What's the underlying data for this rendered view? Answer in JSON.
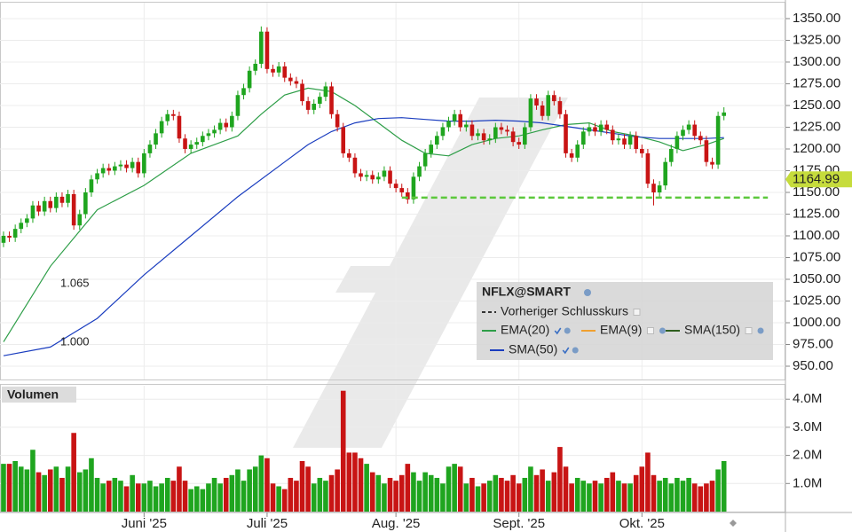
{
  "chart_data": {
    "type": "candlestick",
    "symbol": "NFLX@SMART",
    "xlim": [
      -0.6,
      133.5
    ],
    "xticks": [
      {
        "value": 24,
        "label": "Juni '25"
      },
      {
        "value": 45,
        "label": "Juli '25"
      },
      {
        "value": 67,
        "label": "Aug. '25"
      },
      {
        "value": 88,
        "label": "Sept. '25"
      },
      {
        "value": 109,
        "label": "Okt. '25"
      }
    ],
    "ylim": [
      934.7,
      1366.3
    ],
    "yticks": [
      {
        "value": 950,
        "label": "950.00"
      },
      {
        "value": 975,
        "label": "975.00"
      },
      {
        "value": 1000,
        "label": "1000.00"
      },
      {
        "value": 1025,
        "label": "1025.00"
      },
      {
        "value": 1050,
        "label": "1050.00"
      },
      {
        "value": 1075,
        "label": "1075.00"
      },
      {
        "value": 1100,
        "label": "1100.00"
      },
      {
        "value": 1125,
        "label": "1125.00"
      },
      {
        "value": 1150,
        "label": "1150.00"
      },
      {
        "value": 1175,
        "label": "1175.00"
      },
      {
        "value": 1200,
        "label": "1200.00"
      },
      {
        "value": 1225,
        "label": "1225.00"
      },
      {
        "value": 1250,
        "label": "1250.00"
      },
      {
        "value": 1275,
        "label": "1275.00"
      },
      {
        "value": 1300,
        "label": "1300.00"
      },
      {
        "value": 1325,
        "label": "1325.00"
      },
      {
        "value": 1350,
        "label": "1350.00"
      }
    ],
    "grid": true,
    "up_color": "#1fa51f",
    "down_color": "#c81414",
    "open": [
      1092,
      1100,
      1098,
      1108,
      1115,
      1120,
      1135,
      1128,
      1140,
      1132,
      1145,
      1138,
      1148,
      1112,
      1125,
      1150,
      1165,
      1172,
      1178,
      1175,
      1180,
      1182,
      1178,
      1185,
      1172,
      1195,
      1205,
      1218,
      1232,
      1240,
      1238,
      1212,
      1200,
      1205,
      1208,
      1215,
      1218,
      1222,
      1230,
      1225,
      1238,
      1262,
      1270,
      1290,
      1298,
      1335,
      1292,
      1288,
      1295,
      1282,
      1278,
      1275,
      1255,
      1245,
      1252,
      1260,
      1272,
      1240,
      1225,
      1195,
      1190,
      1172,
      1168,
      1170,
      1165,
      1168,
      1175,
      1160,
      1155,
      1150,
      1142,
      1168,
      1180,
      1195,
      1205,
      1215,
      1225,
      1232,
      1240,
      1225,
      1228,
      1215,
      1218,
      1210,
      1212,
      1225,
      1222,
      1220,
      1208,
      1205,
      1225,
      1258,
      1250,
      1238,
      1262,
      1255,
      1240,
      1195,
      1190,
      1205,
      1220,
      1225,
      1220,
      1228,
      1222,
      1210,
      1212,
      1205,
      1215,
      1200,
      1195,
      1160,
      1150,
      1158,
      1185,
      1200,
      1215,
      1222,
      1228,
      1215,
      1210,
      1185,
      1182,
      1238
    ],
    "high": [
      1105,
      1105,
      1113,
      1120,
      1125,
      1140,
      1140,
      1145,
      1145,
      1150,
      1150,
      1153,
      1153,
      1130,
      1155,
      1170,
      1177,
      1183,
      1183,
      1185,
      1187,
      1187,
      1190,
      1190,
      1200,
      1210,
      1223,
      1237,
      1245,
      1245,
      1243,
      1217,
      1210,
      1213,
      1220,
      1223,
      1227,
      1235,
      1235,
      1243,
      1267,
      1275,
      1295,
      1303,
      1341,
      1340,
      1297,
      1300,
      1300,
      1287,
      1283,
      1280,
      1260,
      1257,
      1265,
      1277,
      1277,
      1245,
      1230,
      1200,
      1195,
      1177,
      1175,
      1175,
      1173,
      1180,
      1180,
      1165,
      1160,
      1155,
      1173,
      1185,
      1200,
      1210,
      1220,
      1230,
      1237,
      1245,
      1245,
      1233,
      1233,
      1223,
      1223,
      1217,
      1230,
      1230,
      1227,
      1225,
      1213,
      1230,
      1263,
      1263,
      1255,
      1267,
      1267,
      1260,
      1245,
      1200,
      1210,
      1225,
      1230,
      1230,
      1233,
      1233,
      1227,
      1217,
      1217,
      1220,
      1220,
      1205,
      1200,
      1165,
      1163,
      1190,
      1205,
      1220,
      1227,
      1233,
      1233,
      1220,
      1215,
      1190,
      1243,
      1248
    ],
    "low": [
      1087,
      1093,
      1093,
      1103,
      1110,
      1115,
      1123,
      1123,
      1127,
      1127,
      1133,
      1133,
      1107,
      1107,
      1120,
      1145,
      1160,
      1167,
      1170,
      1170,
      1175,
      1173,
      1173,
      1167,
      1167,
      1190,
      1200,
      1213,
      1227,
      1233,
      1207,
      1195,
      1195,
      1200,
      1203,
      1210,
      1213,
      1217,
      1220,
      1220,
      1233,
      1257,
      1265,
      1285,
      1293,
      1287,
      1283,
      1283,
      1277,
      1273,
      1270,
      1250,
      1240,
      1240,
      1247,
      1255,
      1235,
      1220,
      1190,
      1185,
      1167,
      1163,
      1163,
      1160,
      1160,
      1163,
      1155,
      1150,
      1145,
      1137,
      1137,
      1163,
      1175,
      1190,
      1200,
      1210,
      1220,
      1227,
      1220,
      1220,
      1210,
      1210,
      1205,
      1205,
      1207,
      1217,
      1215,
      1203,
      1200,
      1200,
      1220,
      1245,
      1233,
      1233,
      1250,
      1235,
      1190,
      1185,
      1185,
      1200,
      1215,
      1215,
      1215,
      1217,
      1205,
      1205,
      1200,
      1200,
      1195,
      1190,
      1155,
      1135,
      1145,
      1153,
      1180,
      1195,
      1210,
      1217,
      1210,
      1205,
      1180,
      1177,
      1177,
      1233
    ],
    "close": [
      1100,
      1098,
      1108,
      1115,
      1120,
      1135,
      1128,
      1140,
      1132,
      1145,
      1138,
      1148,
      1112,
      1125,
      1150,
      1165,
      1172,
      1178,
      1175,
      1180,
      1182,
      1178,
      1185,
      1172,
      1195,
      1205,
      1218,
      1232,
      1240,
      1238,
      1212,
      1200,
      1205,
      1208,
      1215,
      1218,
      1222,
      1230,
      1225,
      1238,
      1262,
      1270,
      1290,
      1298,
      1335,
      1292,
      1288,
      1295,
      1282,
      1278,
      1275,
      1255,
      1245,
      1252,
      1260,
      1272,
      1240,
      1225,
      1195,
      1190,
      1172,
      1168,
      1170,
      1165,
      1168,
      1175,
      1160,
      1155,
      1150,
      1142,
      1168,
      1180,
      1195,
      1205,
      1215,
      1225,
      1232,
      1240,
      1225,
      1228,
      1215,
      1218,
      1210,
      1212,
      1225,
      1222,
      1220,
      1208,
      1205,
      1225,
      1258,
      1250,
      1238,
      1262,
      1255,
      1240,
      1195,
      1190,
      1205,
      1220,
      1225,
      1220,
      1228,
      1222,
      1210,
      1212,
      1205,
      1215,
      1200,
      1195,
      1160,
      1150,
      1158,
      1185,
      1200,
      1215,
      1222,
      1228,
      1215,
      1210,
      1185,
      1182,
      1238,
      1242
    ],
    "series": [
      {
        "name": "Vorheriger Schlusskurs",
        "color": "#333333",
        "dash": true
      },
      {
        "name": "EMA(20)",
        "color": "#2e9e48",
        "x": [
          0,
          8,
          16,
          24,
          32,
          40,
          44,
          48,
          52,
          56,
          60,
          64,
          68,
          72,
          76,
          80,
          84,
          88,
          92,
          96,
          100,
          104,
          108,
          112,
          116,
          120,
          123
        ],
        "values": [
          978,
          1065,
          1130,
          1158,
          1195,
          1215,
          1240,
          1262,
          1270,
          1266,
          1250,
          1230,
          1210,
          1195,
          1192,
          1205,
          1212,
          1215,
          1222,
          1228,
          1230,
          1220,
          1215,
          1208,
          1198,
          1205,
          1212
        ]
      },
      {
        "name": "EMA(9)",
        "color": "#f0a030"
      },
      {
        "name": "SMA(150)",
        "color": "#2e5e1e"
      },
      {
        "name": "SMA(50)",
        "color": "#1a3dbf",
        "x": [
          0,
          8,
          16,
          24,
          32,
          40,
          48,
          52,
          56,
          60,
          64,
          68,
          72,
          76,
          80,
          84,
          88,
          92,
          96,
          100,
          104,
          108,
          112,
          116,
          120,
          123
        ],
        "values": [
          962,
          972,
          1005,
          1055,
          1100,
          1145,
          1185,
          1205,
          1220,
          1230,
          1235,
          1236,
          1234,
          1232,
          1232,
          1233,
          1232,
          1230,
          1226,
          1222,
          1218,
          1214,
          1212,
          1212,
          1212,
          1213
        ]
      }
    ],
    "price_tag": 1164.99,
    "support_line": {
      "value": 1144,
      "from": 68,
      "to": 130.5,
      "color": "#5cc83c"
    },
    "annotations": [
      "1.065",
      "1.000"
    ],
    "volume": {
      "title": "Volumen",
      "ylim": [
        0,
        4.48
      ],
      "yticks": [
        {
          "value": 1,
          "label": "1.0M"
        },
        {
          "value": 2,
          "label": "2.0M"
        },
        {
          "value": 3,
          "label": "3.0M"
        },
        {
          "value": 4,
          "label": "4.0M"
        }
      ],
      "values": [
        1.7,
        1.7,
        1.8,
        1.6,
        1.5,
        2.2,
        1.4,
        1.3,
        1.5,
        1.6,
        1.2,
        1.6,
        2.8,
        1.4,
        1.5,
        1.9,
        1.2,
        1.0,
        1.1,
        1.2,
        1.1,
        0.9,
        1.3,
        1.0,
        1.0,
        1.1,
        0.9,
        1.0,
        1.2,
        1.1,
        1.6,
        1.1,
        0.8,
        0.9,
        0.8,
        1.0,
        1.2,
        1.0,
        1.2,
        1.3,
        1.5,
        1.1,
        1.5,
        1.6,
        2.0,
        1.9,
        1.0,
        0.9,
        0.8,
        1.2,
        1.1,
        1.8,
        1.6,
        1.0,
        1.2,
        1.1,
        1.3,
        1.5,
        4.3,
        2.1,
        2.1,
        1.9,
        1.7,
        1.4,
        1.3,
        1.0,
        1.2,
        1.1,
        1.3,
        1.7,
        1.4,
        1.1,
        1.4,
        1.3,
        1.2,
        1.0,
        1.6,
        1.7,
        1.6,
        1.0,
        1.2,
        0.9,
        1.0,
        1.1,
        1.3,
        1.2,
        1.1,
        1.3,
        1.0,
        1.2,
        1.6,
        1.3,
        1.5,
        1.1,
        1.4,
        2.3,
        1.6,
        1.0,
        1.2,
        1.1,
        1.0,
        1.1,
        1.0,
        1.2,
        1.4,
        1.1,
        1.0,
        1.0,
        1.3,
        1.6,
        2.1,
        1.3,
        1.1,
        1.2,
        1.0,
        1.2,
        1.1,
        1.2,
        1.0,
        0.9,
        1.0,
        1.1,
        1.5,
        1.8
      ]
    }
  }
}
